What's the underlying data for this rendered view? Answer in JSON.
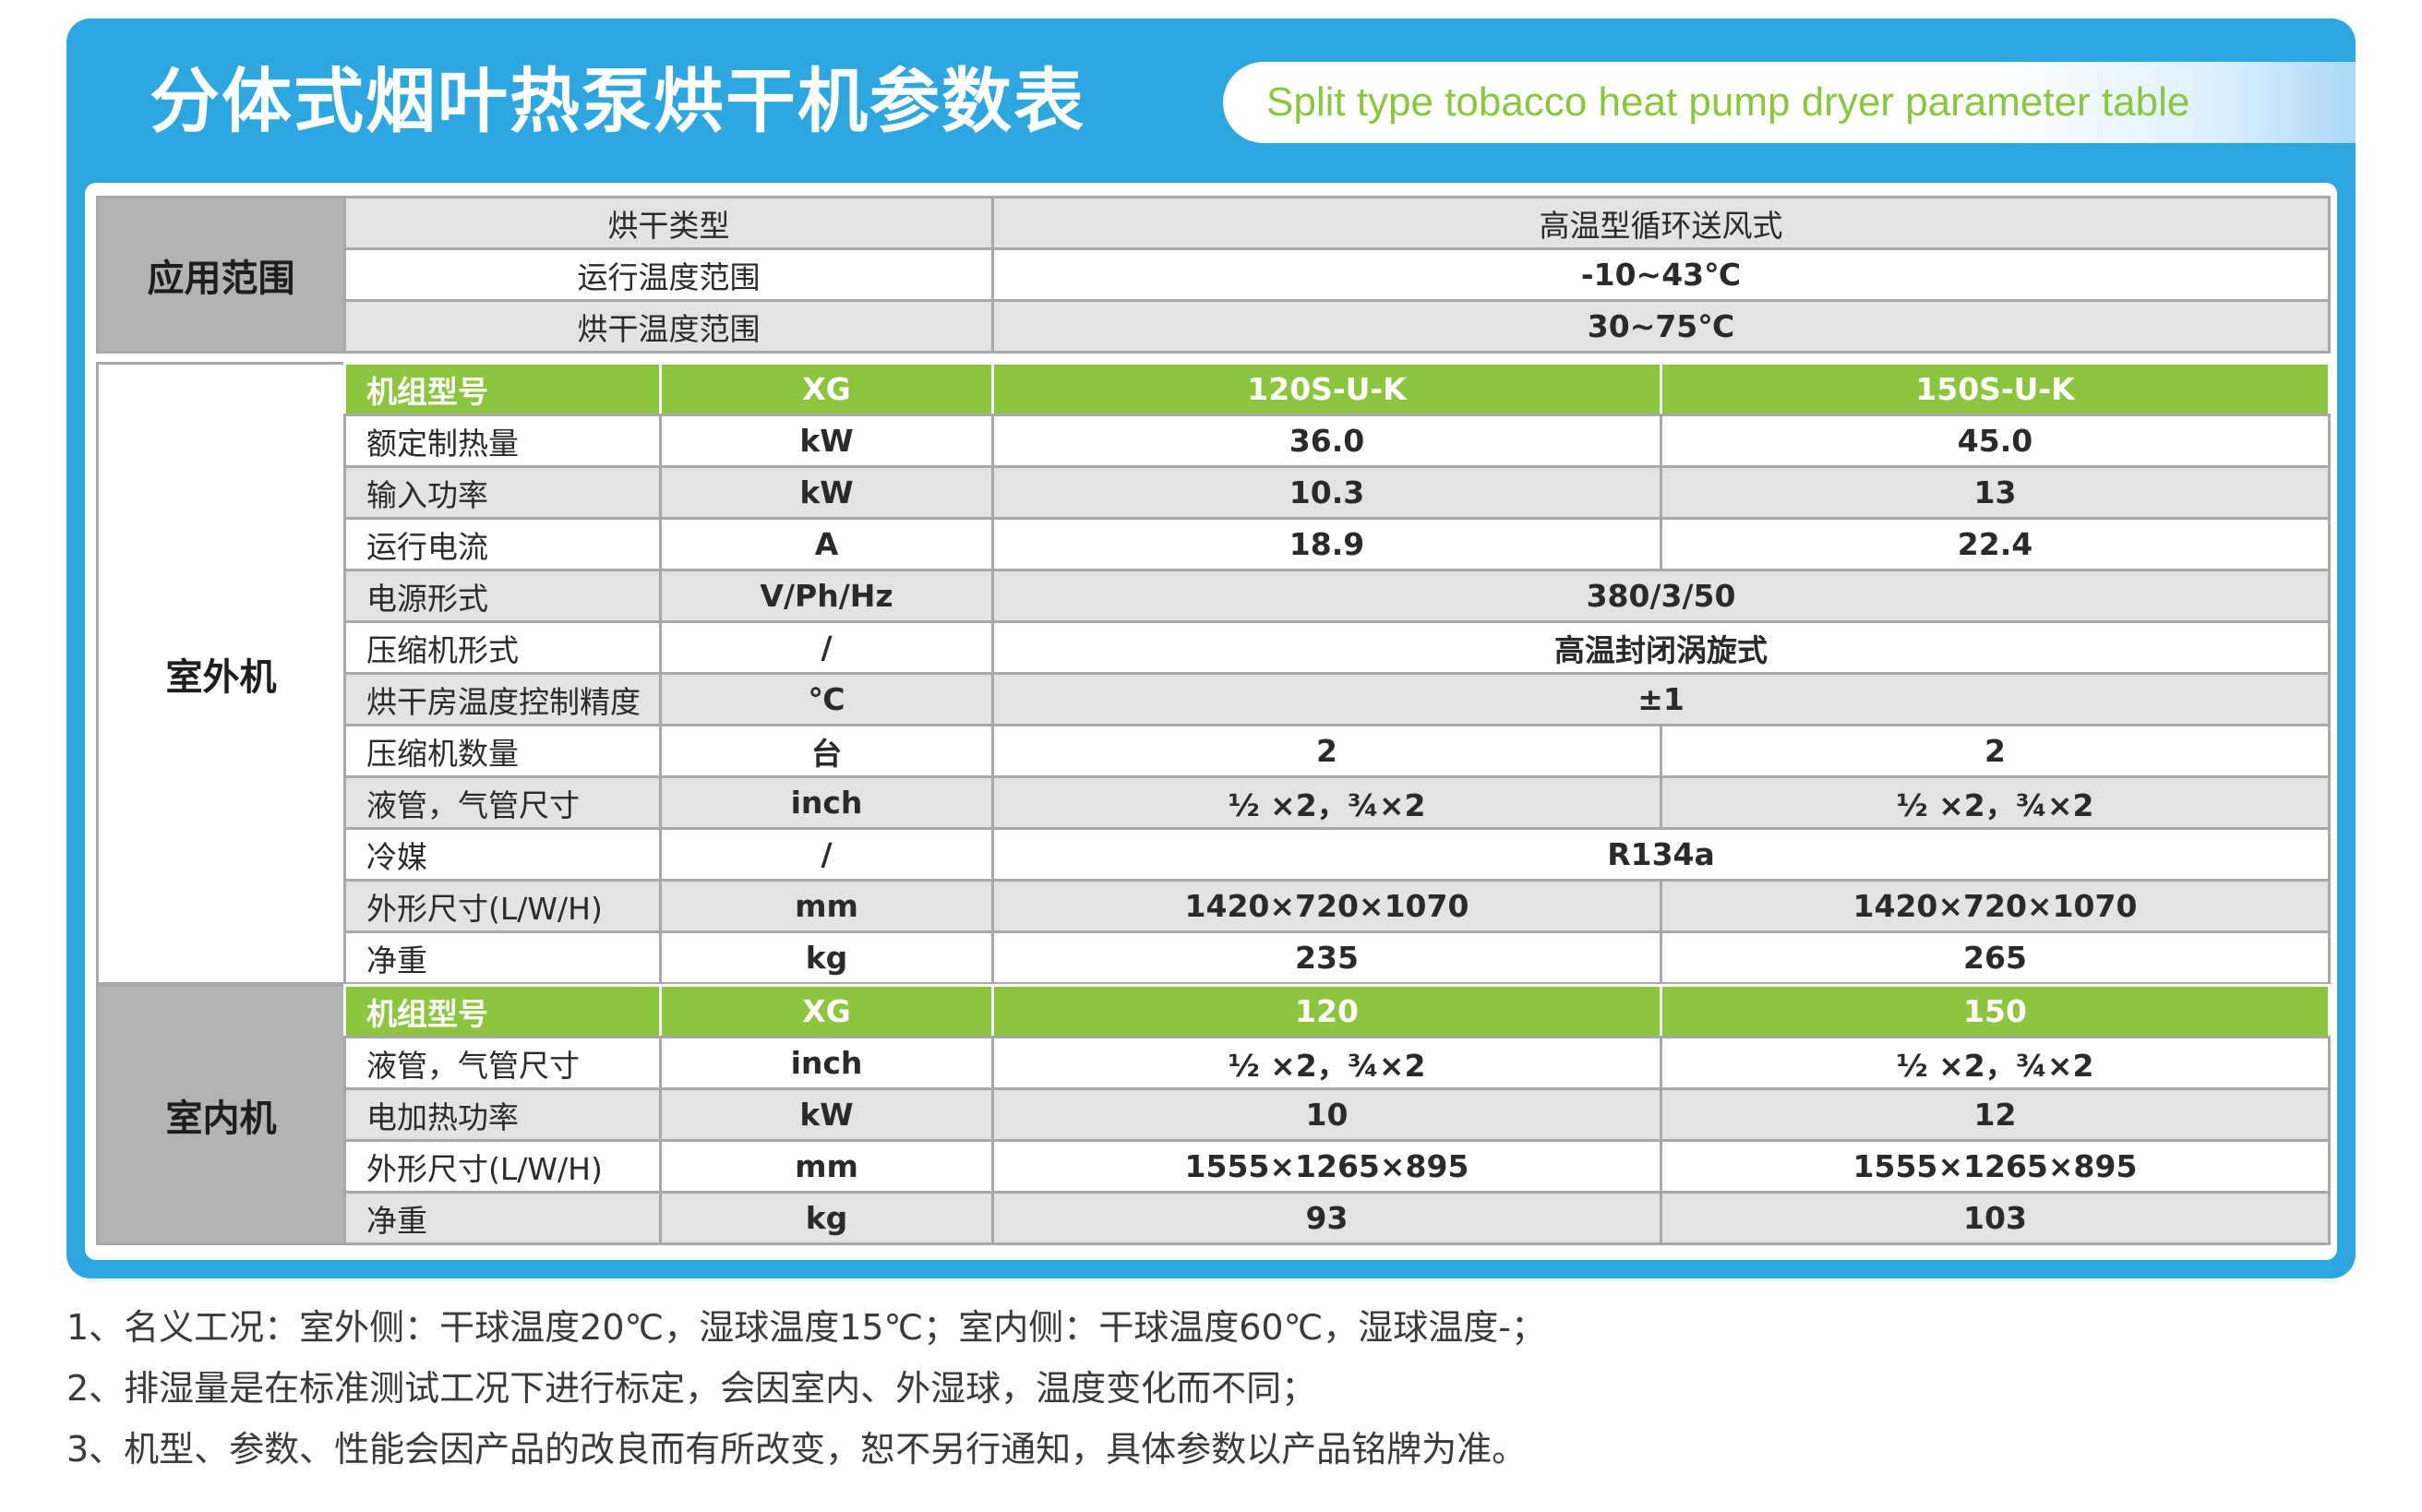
{
  "title": {
    "cn": "分体式烟叶热泵烘干机参数表",
    "en": "Split type tobacco heat pump dryer parameter table"
  },
  "application": {
    "section_label": "应用范围",
    "rows": [
      {
        "label": "烘干类型",
        "value": "高温型循环送风式"
      },
      {
        "label": "运行温度范围",
        "value": "-10~43℃"
      },
      {
        "label": "烘干温度范围",
        "value": "30~75℃"
      }
    ]
  },
  "outdoor": {
    "section_label": "室外机",
    "header": {
      "label": "机组型号",
      "unit": "XG",
      "models": [
        "120S-U-K",
        "150S-U-K"
      ]
    },
    "rows": [
      {
        "label": "额定制热量",
        "unit": "kW",
        "values": [
          "36.0",
          "45.0"
        ]
      },
      {
        "label": "输入功率",
        "unit": "kW",
        "values": [
          "10.3",
          "13"
        ]
      },
      {
        "label": "运行电流",
        "unit": "A",
        "values": [
          "18.9",
          "22.4"
        ]
      },
      {
        "label": "电源形式",
        "unit": "V/Ph/Hz",
        "merged": "380/3/50"
      },
      {
        "label": "压缩机形式",
        "unit": "/",
        "merged": "高温封闭涡旋式"
      },
      {
        "label": "烘干房温度控制精度",
        "unit": "℃",
        "merged": "±1"
      },
      {
        "label": "压缩机数量",
        "unit": "台",
        "values": [
          "2",
          "2"
        ]
      },
      {
        "label": "液管，气管尺寸",
        "unit": "inch",
        "values": [
          "½ ×2，¾×2",
          "½ ×2，¾×2"
        ]
      },
      {
        "label": "冷媒",
        "unit": "/",
        "merged": "R134a"
      },
      {
        "label": "外形尺寸(L/W/H)",
        "unit": "mm",
        "values": [
          "1420×720×1070",
          "1420×720×1070"
        ]
      },
      {
        "label": "净重",
        "unit": "kg",
        "values": [
          "235",
          "265"
        ]
      }
    ]
  },
  "indoor": {
    "section_label": "室内机",
    "header": {
      "label": "机组型号",
      "unit": "XG",
      "models": [
        "120",
        "150"
      ]
    },
    "rows": [
      {
        "label": "液管，气管尺寸",
        "unit": "inch",
        "values": [
          "½ ×2，¾×2",
          "½ ×2，¾×2"
        ]
      },
      {
        "label": "电加热功率",
        "unit": "kW",
        "values": [
          "10",
          "12"
        ]
      },
      {
        "label": "外形尺寸(L/W/H)",
        "unit": "mm",
        "values": [
          "1555×1265×895",
          "1555×1265×895"
        ]
      },
      {
        "label": "净重",
        "unit": "kg",
        "values": [
          "93",
          "103"
        ]
      }
    ]
  },
  "notes": [
    "1、名义工况：室外侧：干球温度20℃，湿球温度15℃；室内侧：干球温度60℃，湿球温度-；",
    "2、排湿量是在标准测试工况下进行标定，会因室内、外湿球，温度变化而不同；",
    "3、机型、参数、性能会因产品的改良而有所改变，恕不另行通知，具体参数以产品铭牌为准。"
  ],
  "colors": {
    "frame_blue": "#2ea7e0",
    "header_green": "#8cc63f",
    "row_gray": "#e3e3e3",
    "section_gray": "#b3b3b3"
  }
}
